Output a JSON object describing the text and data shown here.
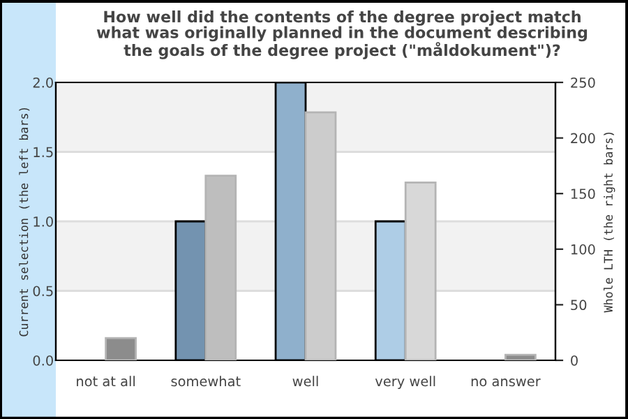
{
  "chart_data": {
    "type": "bar",
    "title": "How well did the contents of the degree project match\nwhat was originally planned in the document describing\nthe goals of the degree project (\"måldokument\")?",
    "categories": [
      "not at all",
      "somewhat",
      "well",
      "very well",
      "no answer"
    ],
    "ylabel": "Current selection (the left bars)",
    "y2label": "Whole LTH (the right bars)",
    "series": [
      {
        "colors": [
          "#7393b0",
          "#7393b0",
          "#8fb0cc",
          "#aecde6",
          "#7393b0"
        ],
        "values": [
          0,
          1,
          2,
          1,
          0
        ]
      },
      {
        "colors": [
          "#8c8c8c",
          "#bebebe",
          "#cccccc",
          "#d8d8d8",
          "#8c8c8c"
        ],
        "values": [
          20,
          166,
          223,
          160,
          5
        ],
        "axis": "y2"
      }
    ],
    "ylim": [
      0,
      2
    ],
    "yticks": [
      {
        "value": 0,
        "label": "0.0"
      },
      {
        "value": 0.5,
        "label": "0.5"
      },
      {
        "value": 1,
        "label": "1.0"
      },
      {
        "value": 1.5,
        "label": "1.5"
      },
      {
        "value": 2,
        "label": "2.0"
      }
    ],
    "y2lim": [
      0,
      250
    ],
    "y2ticks": [
      0,
      50,
      100,
      150,
      200,
      250
    ],
    "bands": [
      {
        "axis": "y",
        "from": 0.5,
        "to": 1.0,
        "color": "#f2f2f2"
      },
      {
        "axis": "y",
        "from": 1.5,
        "to": 2.0,
        "color": "#f2f2f2"
      }
    ],
    "grid": "y",
    "legend": false
  }
}
